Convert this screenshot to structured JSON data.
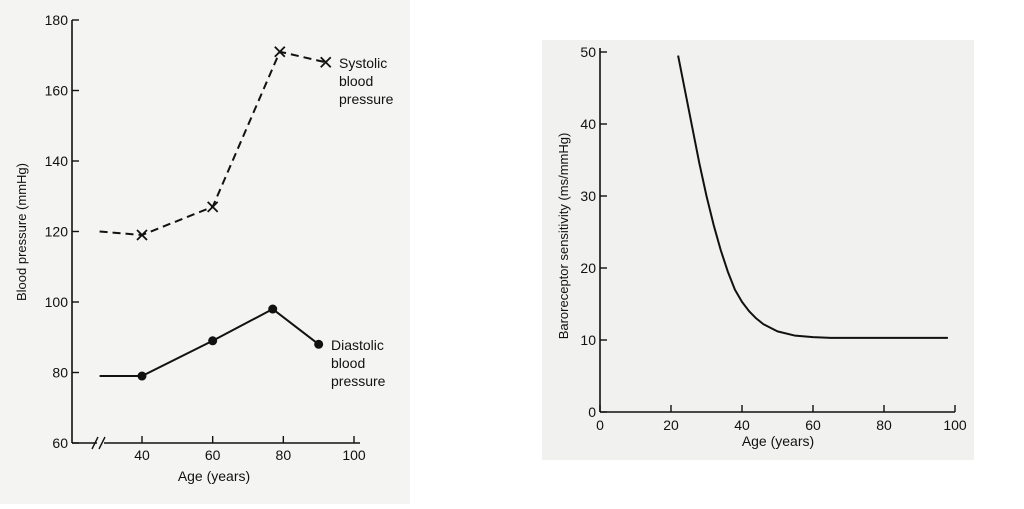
{
  "chart_data": [
    {
      "type": "line",
      "title": "",
      "xlabel": "Age (years)",
      "ylabel": "Blood pressure (mmHg)",
      "xlim": [
        25,
        100
      ],
      "ylim": [
        60,
        180
      ],
      "x_axis_break": true,
      "x_ticks": [
        40,
        60,
        80,
        100
      ],
      "y_ticks": [
        60,
        80,
        100,
        120,
        140,
        160,
        180
      ],
      "series": [
        {
          "name": "Systolic blood pressure",
          "label_lines": [
            "Systolic",
            "blood",
            "pressure"
          ],
          "style": "dashed",
          "marker": "x",
          "x": [
            28,
            40,
            60,
            79,
            92
          ],
          "y": [
            120,
            119,
            127,
            171,
            168
          ]
        },
        {
          "name": "Diastolic blood pressure",
          "label_lines": [
            "Diastolic",
            "blood",
            "pressure"
          ],
          "style": "solid",
          "marker": "dot",
          "x": [
            28,
            40,
            60,
            77,
            90
          ],
          "y": [
            79,
            79,
            89,
            98,
            88
          ]
        }
      ]
    },
    {
      "type": "line",
      "title": "",
      "xlabel": "Age (years)",
      "ylabel": "Baroreceptor sensitivity (ms/mmHg)",
      "xlim": [
        0,
        100
      ],
      "ylim": [
        0,
        50
      ],
      "x_ticks": [
        0,
        20,
        40,
        60,
        80,
        100
      ],
      "y_ticks": [
        0,
        10,
        20,
        30,
        40,
        50
      ],
      "series": [
        {
          "name": "",
          "style": "solid",
          "x": [
            22,
            24,
            26,
            28,
            30,
            32,
            34,
            36,
            38,
            40,
            42,
            44,
            46,
            50,
            55,
            60,
            65,
            70,
            80,
            90,
            98
          ],
          "y": [
            49.5,
            44.5,
            39.5,
            34.5,
            30,
            26,
            22.5,
            19.5,
            17,
            15.3,
            14,
            13,
            12.2,
            11.2,
            10.6,
            10.4,
            10.3,
            10.3,
            10.3,
            10.3,
            10.3
          ]
        }
      ]
    }
  ]
}
